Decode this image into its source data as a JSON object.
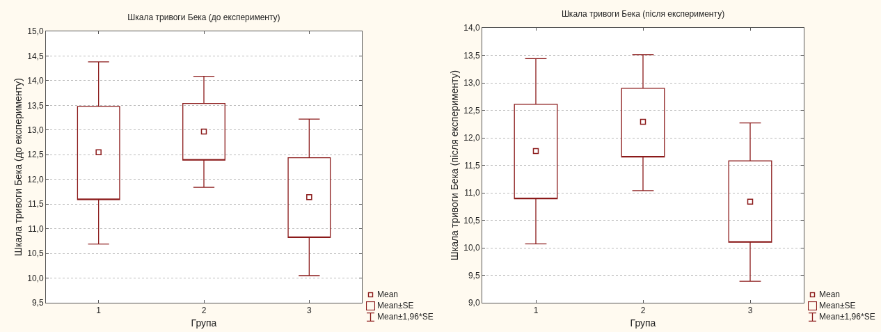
{
  "chart_data": [
    {
      "type": "box",
      "title": "Шкала тривоги Бека (до експерименту)",
      "xlabel": "Група",
      "ylabel": "Шкала тривоги Бека (до експерименту)",
      "categories": [
        "1",
        "2",
        "3"
      ],
      "series": [
        {
          "color": "#8b1a1a",
          "boxes": [
            {
              "low": 10.69,
              "q1": 11.59,
              "mean": 12.55,
              "q3": 13.48,
              "high": 14.38
            },
            {
              "low": 11.84,
              "q1": 12.39,
              "mean": 12.97,
              "q3": 13.54,
              "high": 14.09
            },
            {
              "low": 10.05,
              "q1": 10.82,
              "mean": 11.64,
              "q3": 12.44,
              "high": 13.22
            }
          ]
        }
      ],
      "marker": "square",
      "ylim": [
        9.5,
        15
      ],
      "yticks": [
        {
          "value": 9.5,
          "label": "9,5"
        },
        {
          "value": 10,
          "label": "10,0"
        },
        {
          "value": 10.5,
          "label": "10,5"
        },
        {
          "value": 11,
          "label": "11,0"
        },
        {
          "value": 11.5,
          "label": "11,5"
        },
        {
          "value": 12,
          "label": "12,0"
        },
        {
          "value": 12.5,
          "label": "12,5"
        },
        {
          "value": 13,
          "label": "13,0"
        },
        {
          "value": 13.5,
          "label": "13,5"
        },
        {
          "value": 14,
          "label": "14,0"
        },
        {
          "value": 14.5,
          "label": "14,5"
        },
        {
          "value": 15,
          "label": "15,0"
        }
      ],
      "grid": "y",
      "annotations": [
        "Mean",
        "Mean±SE",
        "Mean±1,96*SE"
      ]
    },
    {
      "type": "box",
      "title": "Шкала тривоги Бека (після експерименту)",
      "xlabel": "Група",
      "ylabel": "Шкала тривоги Бека (після експерименту)",
      "categories": [
        "1",
        "2",
        "3"
      ],
      "series": [
        {
          "color": "#8b1a1a",
          "boxes": [
            {
              "low": 10.07,
              "q1": 10.89,
              "mean": 11.76,
              "q3": 12.61,
              "high": 13.44
            },
            {
              "low": 11.04,
              "q1": 11.65,
              "mean": 12.29,
              "q3": 12.9,
              "high": 13.51
            },
            {
              "low": 9.39,
              "q1": 10.1,
              "mean": 10.84,
              "q3": 11.58,
              "high": 12.27
            }
          ]
        }
      ],
      "marker": "square",
      "ylim": [
        9,
        14
      ],
      "yticks": [
        {
          "value": 9,
          "label": "9,0"
        },
        {
          "value": 9.5,
          "label": "9,5"
        },
        {
          "value": 10,
          "label": "10,0"
        },
        {
          "value": 10.5,
          "label": "10,5"
        },
        {
          "value": 11,
          "label": "11,0"
        },
        {
          "value": 11.5,
          "label": "11,5"
        },
        {
          "value": 12,
          "label": "12,0"
        },
        {
          "value": 12.5,
          "label": "12,5"
        },
        {
          "value": 13,
          "label": "13,0"
        },
        {
          "value": 13.5,
          "label": "13,5"
        },
        {
          "value": 14,
          "label": "14,0"
        }
      ],
      "grid": "y",
      "annotations": [
        "Mean",
        "Mean±SE",
        "Mean±1,96*SE"
      ]
    }
  ]
}
